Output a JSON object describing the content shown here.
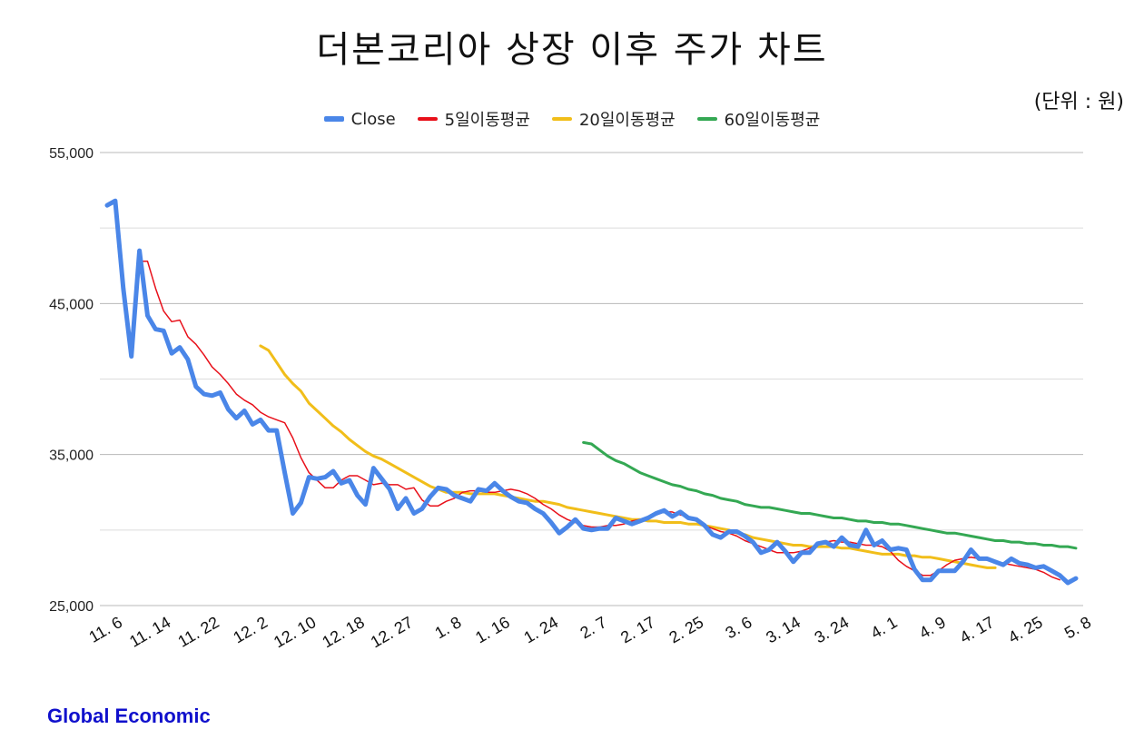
{
  "title": "더본코리아 상장 이후 주가 차트",
  "unit_label": "(단위 : 원)",
  "credit": "Global Economic",
  "chart_data": {
    "type": "line",
    "title": "더본코리아 상장 이후 주가 차트",
    "ylim": [
      25000,
      55000
    ],
    "yticks": [
      25000,
      35000,
      45000,
      55000
    ],
    "ytick_labels": [
      "25,000",
      "35,000",
      "45,000",
      "55,000"
    ],
    "grid": true,
    "legend_position": "top",
    "xtick_labels": [
      "11. 6",
      "11. 14",
      "11. 22",
      "12. 2",
      "12. 10",
      "12. 18",
      "12. 27",
      "1. 8",
      "1. 16",
      "1. 24",
      "2. 7",
      "2. 17",
      "2. 25",
      "3. 6",
      "3. 14",
      "3. 24",
      "4. 1",
      "4. 9",
      "4. 17",
      "4. 25",
      "5. 8"
    ],
    "xtick_index": [
      0,
      6,
      12,
      18,
      24,
      30,
      36,
      42,
      48,
      54,
      60,
      66,
      72,
      78,
      84,
      90,
      96,
      102,
      108,
      114,
      120
    ],
    "series": [
      {
        "name": "Close",
        "color": "#4a86e8",
        "width": 5,
        "start": 0,
        "values": [
          51500,
          51800,
          46000,
          41500,
          48500,
          44200,
          43300,
          43200,
          41700,
          42100,
          41300,
          39500,
          39000,
          38900,
          39100,
          38000,
          37400,
          37900,
          37000,
          37300,
          36600,
          36600,
          33800,
          31100,
          31800,
          33500,
          33400,
          33500,
          33900,
          33100,
          33300,
          32300,
          31700,
          34100,
          33400,
          32700,
          31400,
          32100,
          31100,
          31400,
          32200,
          32800,
          32700,
          32300,
          32100,
          31900,
          32700,
          32600,
          33100,
          32600,
          32200,
          31900,
          31800,
          31400,
          31100,
          30500,
          29800,
          30200,
          30700,
          30100,
          30000,
          30100,
          30100,
          30800,
          30600,
          30400,
          30600,
          30800,
          31100,
          31300,
          30900,
          31200,
          30800,
          30700,
          30300,
          29700,
          29500,
          29900,
          29900,
          29600,
          29200,
          28500,
          28700,
          29200,
          28600,
          27900,
          28500,
          28500,
          29100,
          29200,
          28900,
          29500,
          29000,
          28900,
          30000,
          29000,
          29300,
          28700,
          28800,
          28700,
          27400,
          26700,
          26700,
          27300,
          27300,
          27300,
          27900,
          28700,
          28100,
          28100,
          27900,
          27700,
          28100,
          27800,
          27700,
          27500,
          27600,
          27300,
          27000,
          26500,
          26800
        ]
      },
      {
        "name": "5일이동평균",
        "color": "#e8101a",
        "width": 1.5,
        "start": 4,
        "values": [
          47800,
          47800,
          46000,
          44500,
          43800,
          43900,
          42800,
          42300,
          41600,
          40800,
          40300,
          39700,
          39000,
          38600,
          38300,
          37800,
          37500,
          37300,
          37100,
          36100,
          34800,
          33800,
          33300,
          32800,
          32800,
          33300,
          33600,
          33600,
          33300,
          33000,
          33100,
          33000,
          33000,
          32700,
          32800,
          32000,
          31600,
          31600,
          31900,
          32100,
          32500,
          32600,
          32600,
          32500,
          32500,
          32600,
          32700,
          32600,
          32400,
          32100,
          31700,
          31400,
          31000,
          30700,
          30500,
          30300,
          30200,
          30200,
          30300,
          30300,
          30400,
          30600,
          30700,
          30900,
          31000,
          31200,
          31200,
          31000,
          30900,
          30700,
          30300,
          30100,
          29900,
          29800,
          29600,
          29300,
          29100,
          28900,
          28700,
          28500,
          28500,
          28500,
          28600,
          28800,
          29000,
          29200,
          29300,
          29200,
          29200,
          29100,
          29000,
          29000,
          28900,
          28600,
          28000,
          27600,
          27300,
          27000,
          27000,
          27300,
          27700,
          28000,
          28100,
          28200,
          28100,
          28000,
          27900,
          27800,
          27700,
          27600,
          27500,
          27400,
          27200,
          26900,
          26700
        ]
      },
      {
        "name": "20일이동평균",
        "color": "#f1be1a",
        "width": 3,
        "start": 19,
        "values": [
          42200,
          41900,
          41100,
          40300,
          39700,
          39200,
          38400,
          37900,
          37400,
          36900,
          36500,
          36000,
          35600,
          35200,
          34900,
          34700,
          34400,
          34100,
          33800,
          33500,
          33200,
          32900,
          32700,
          32500,
          32500,
          32500,
          32400,
          32400,
          32400,
          32400,
          32300,
          32200,
          32100,
          32000,
          31900,
          31900,
          31800,
          31700,
          31500,
          31400,
          31300,
          31200,
          31100,
          31000,
          30900,
          30800,
          30700,
          30700,
          30600,
          30600,
          30500,
          30500,
          30500,
          30400,
          30400,
          30300,
          30200,
          30100,
          30000,
          29800,
          29700,
          29500,
          29400,
          29300,
          29200,
          29100,
          29000,
          29000,
          28900,
          28900,
          28900,
          28900,
          28800,
          28800,
          28700,
          28600,
          28500,
          28400,
          28400,
          28400,
          28300,
          28300,
          28200,
          28200,
          28100,
          28000,
          27900,
          27800,
          27700,
          27600,
          27500,
          27500
        ]
      },
      {
        "name": "60일이동평균",
        "color": "#34a853",
        "width": 3,
        "start": 59,
        "values": [
          35800,
          35700,
          35300,
          34900,
          34600,
          34400,
          34100,
          33800,
          33600,
          33400,
          33200,
          33000,
          32900,
          32700,
          32600,
          32400,
          32300,
          32100,
          32000,
          31900,
          31700,
          31600,
          31500,
          31500,
          31400,
          31300,
          31200,
          31100,
          31100,
          31000,
          30900,
          30800,
          30800,
          30700,
          30600,
          30600,
          30500,
          30500,
          30400,
          30400,
          30300,
          30200,
          30100,
          30000,
          29900,
          29800,
          29800,
          29700,
          29600,
          29500,
          29400,
          29300,
          29300,
          29200,
          29200,
          29100,
          29100,
          29000,
          29000,
          28900,
          28900,
          28800
        ]
      }
    ]
  }
}
